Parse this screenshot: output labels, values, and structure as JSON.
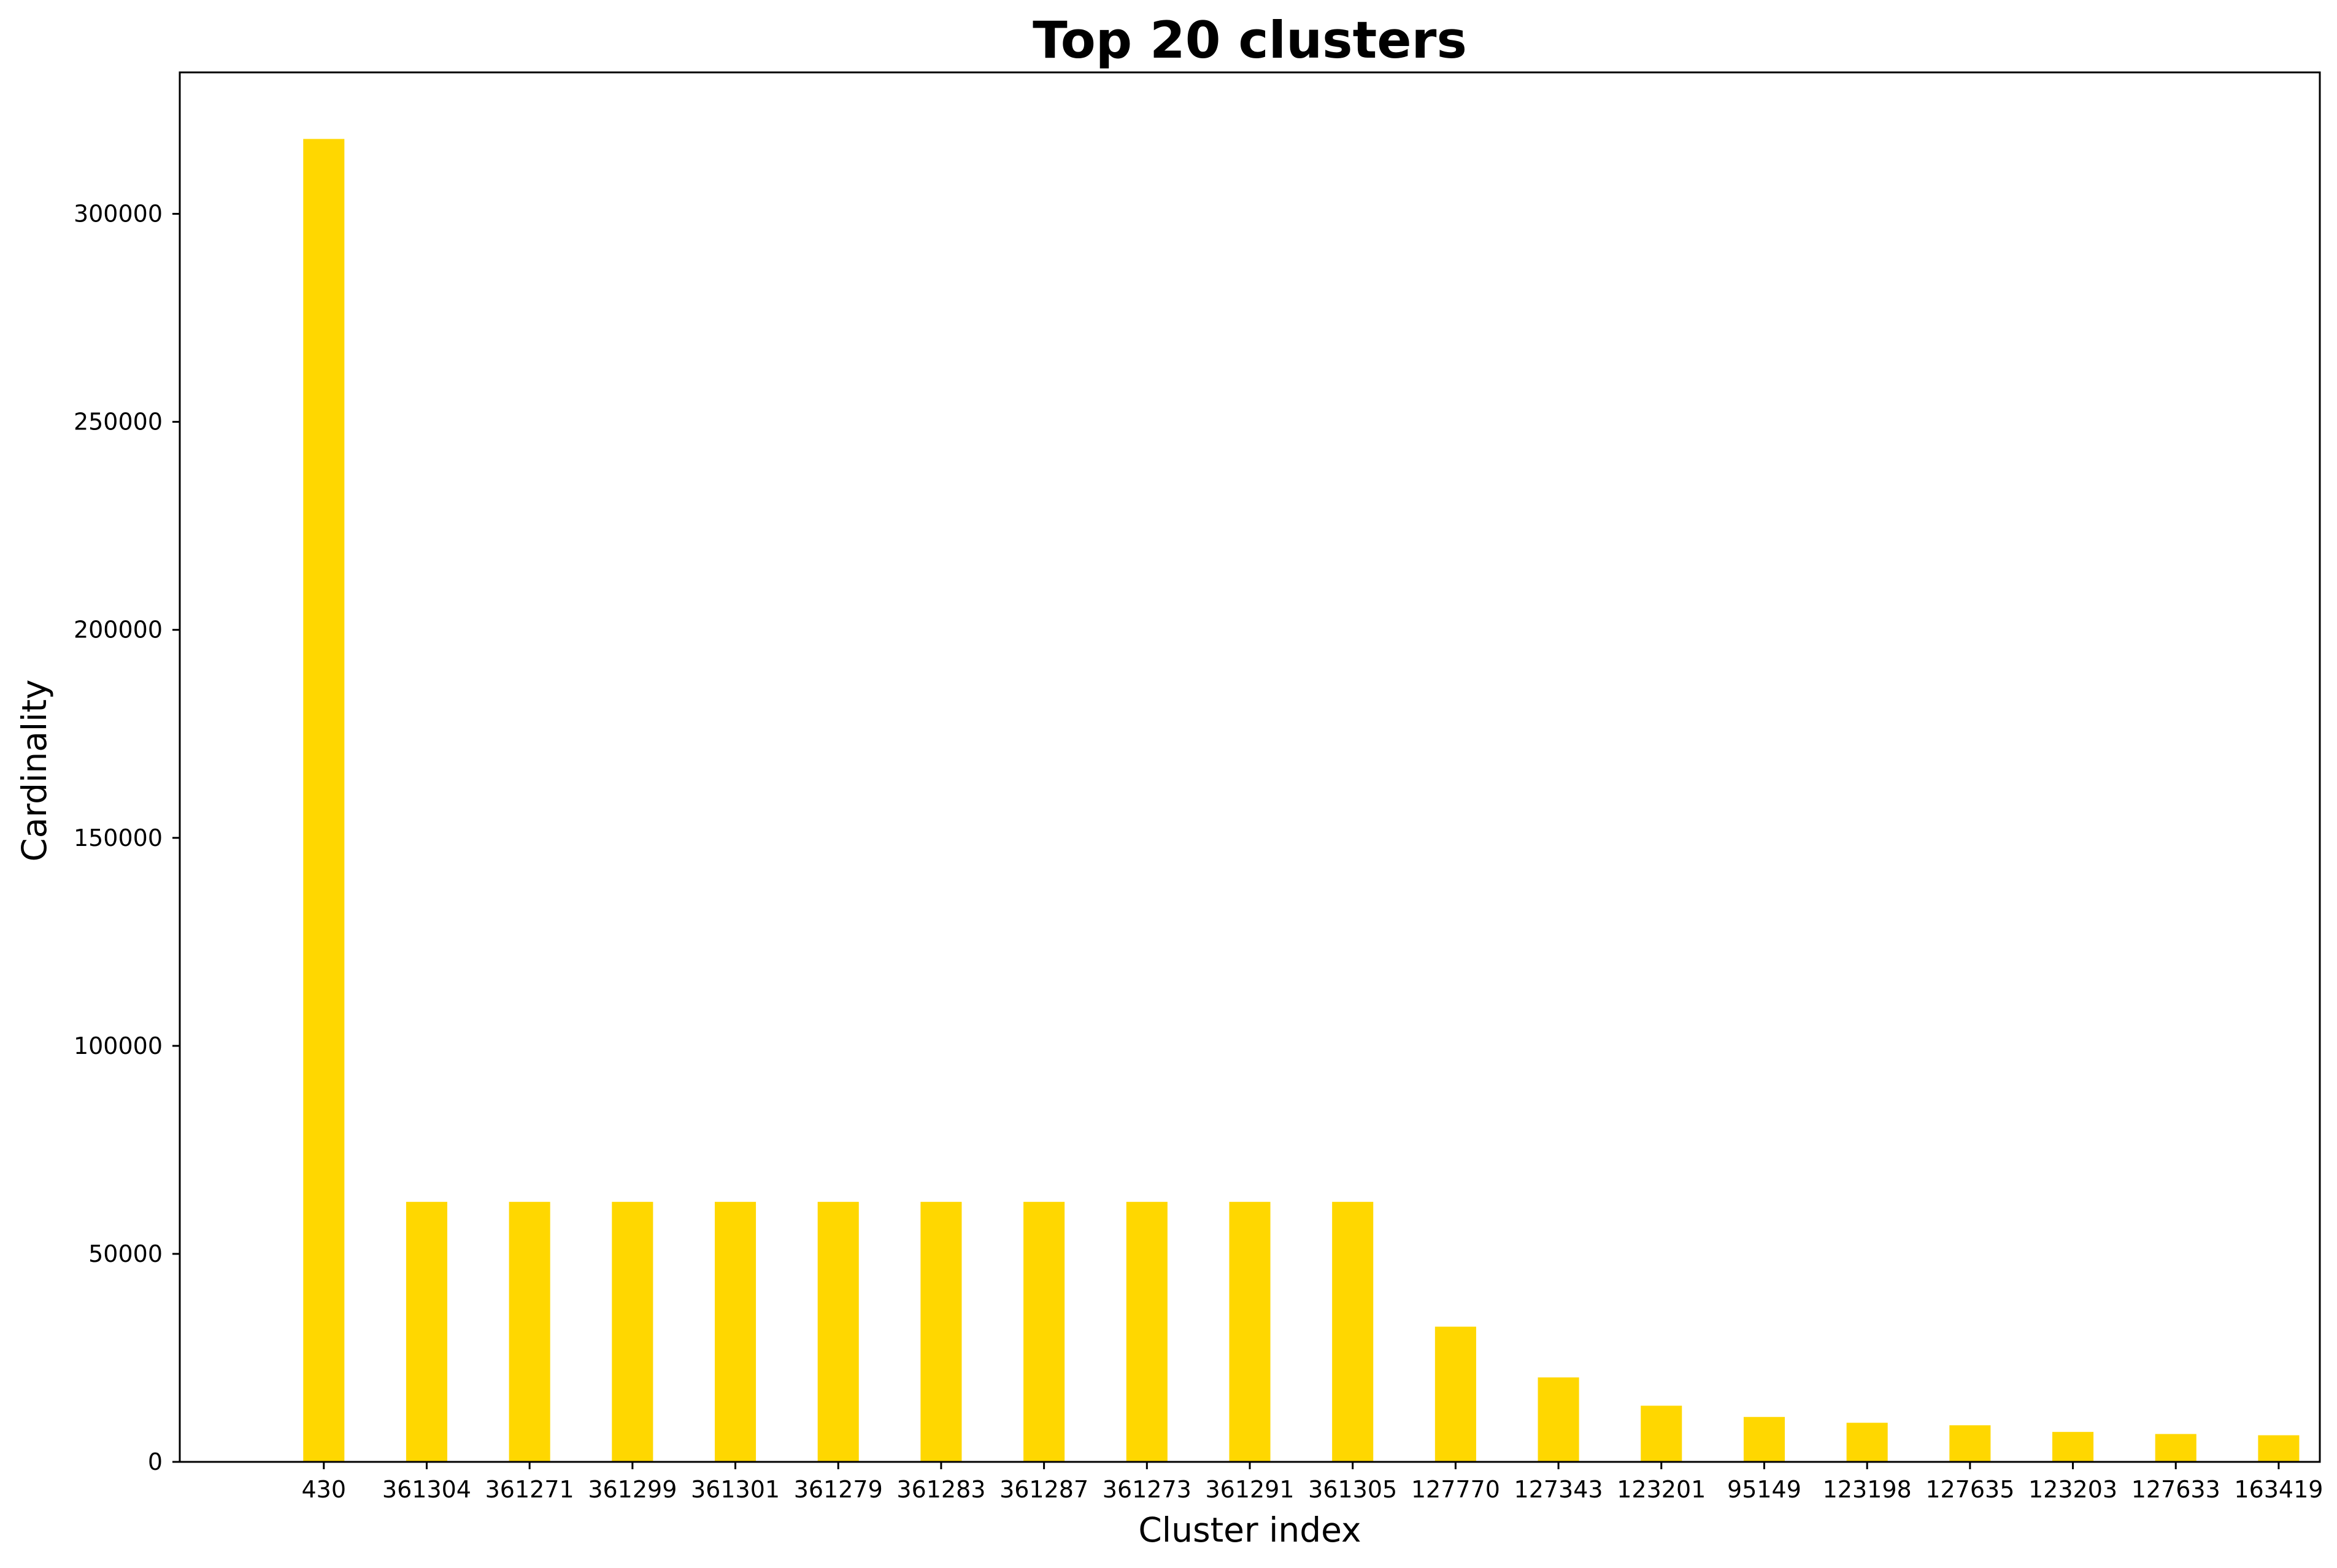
{
  "chart_data": {
    "type": "bar",
    "title": "Top 20 clusters",
    "xlabel": "Cluster index",
    "ylabel": "Cardinality",
    "categories": [
      "430",
      "361304",
      "361271",
      "361299",
      "361301",
      "361279",
      "361283",
      "361287",
      "361273",
      "361291",
      "361305",
      "127770",
      "127343",
      "123201",
      "95149",
      "123198",
      "127635",
      "123203",
      "127633",
      "163419"
    ],
    "values": [
      318000,
      62500,
      62500,
      62500,
      62500,
      62500,
      62500,
      62500,
      62500,
      62500,
      62500,
      32500,
      20300,
      13500,
      10800,
      9400,
      8800,
      7200,
      6700,
      6400
    ],
    "ylim": [
      0,
      334000
    ],
    "yticks": [
      0,
      50000,
      100000,
      150000,
      200000,
      250000,
      300000
    ],
    "ytick_labels": [
      "0",
      "50000",
      "100000",
      "150000",
      "200000",
      "250000",
      "300000"
    ],
    "bar_color": "#ffd700",
    "grid": false,
    "legend": "none"
  }
}
